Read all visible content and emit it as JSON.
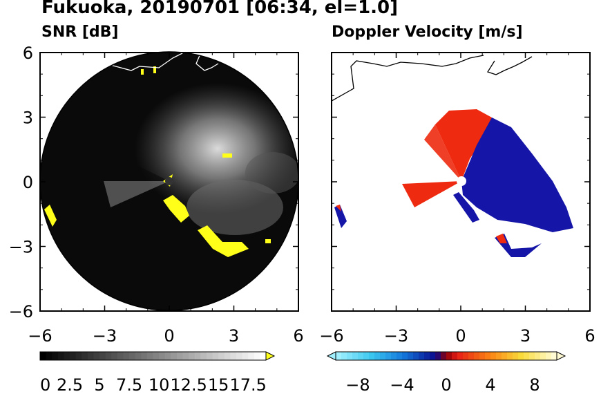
{
  "figure": {
    "title": "Fukuoka, 20190701 [06:34, el=1.0]"
  },
  "colors": {
    "background": "#ffffff",
    "radar_disk": "#0a0a0a",
    "clutter": "#ffff1a",
    "approaching": "#1515a8",
    "receding": "#ee2a10",
    "coastline": "#000000"
  },
  "chart_data": [
    {
      "type": "heatmap",
      "title": "SNR [dB]",
      "xlim": [
        -6,
        6
      ],
      "ylim": [
        -6,
        6
      ],
      "x_ticks": [
        "−6",
        "−3",
        "0",
        "3",
        "6"
      ],
      "y_ticks": [
        "−6",
        "−3",
        "0",
        "3",
        "6"
      ],
      "range_ring_radius": 6,
      "colorbar": {
        "min": 0,
        "max": 19,
        "extend": "max",
        "tick_labels": [
          "0",
          "2.5",
          "5",
          "7.5",
          "10",
          "12.5",
          "15",
          "17.5"
        ],
        "tick_values": [
          0,
          2.5,
          5,
          7.5,
          10,
          12.5,
          15,
          17.5
        ]
      }
    },
    {
      "type": "heatmap",
      "title": "Doppler Velocity [m/s]",
      "xlim": [
        -6,
        6
      ],
      "ylim": [
        -6,
        6
      ],
      "x_ticks": [
        "−6",
        "−3",
        "0",
        "3",
        "6"
      ],
      "y_ticks": [],
      "colorbar": {
        "min": -10,
        "max": 10,
        "extend": "both",
        "tick_labels": [
          "−8",
          "−4",
          "0",
          "4",
          "8"
        ],
        "tick_values": [
          -8,
          -4,
          0,
          4,
          8
        ]
      }
    }
  ]
}
